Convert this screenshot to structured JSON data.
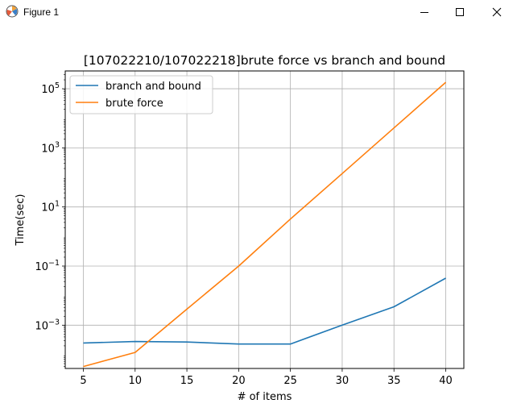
{
  "window": {
    "title": "Figure 1",
    "icon": "matplotlib-icon",
    "controls": [
      "minimize-icon",
      "maximize-icon",
      "close-icon"
    ]
  },
  "chart_data": {
    "type": "line",
    "title": "[107022210/107022218]brute force vs branch and bound",
    "xlabel": "# of items",
    "ylabel": "Time(sec)",
    "yscale": "log",
    "grid": true,
    "legend_position": "top-left",
    "x": [
      5,
      10,
      15,
      20,
      25,
      30,
      35,
      40
    ],
    "x_ticks": [
      "5",
      "10",
      "15",
      "20",
      "25",
      "30",
      "35",
      "40"
    ],
    "y_ticks": [
      {
        "value": 0.001,
        "base": "10",
        "exp": "−3"
      },
      {
        "value": 0.1,
        "base": "10",
        "exp": "−1"
      },
      {
        "value": 10,
        "base": "10",
        "exp": "1"
      },
      {
        "value": 1000,
        "base": "10",
        "exp": "3"
      },
      {
        "value": 100000,
        "base": "10",
        "exp": "5"
      }
    ],
    "xlim": [
      3.25,
      41.75
    ],
    "ylim": [
      3.43e-05,
      400000
    ],
    "series": [
      {
        "name": "branch and bound",
        "color": "#1f77b4",
        "values": [
          0.00025,
          0.00028,
          0.00027,
          0.00023,
          0.00023,
          0.001,
          0.0042,
          0.039
        ]
      },
      {
        "name": "brute force",
        "color": "#ff7f0e",
        "values": [
          4e-05,
          0.00012,
          0.0035,
          0.1,
          3.9,
          135,
          4700,
          165000
        ]
      }
    ]
  }
}
